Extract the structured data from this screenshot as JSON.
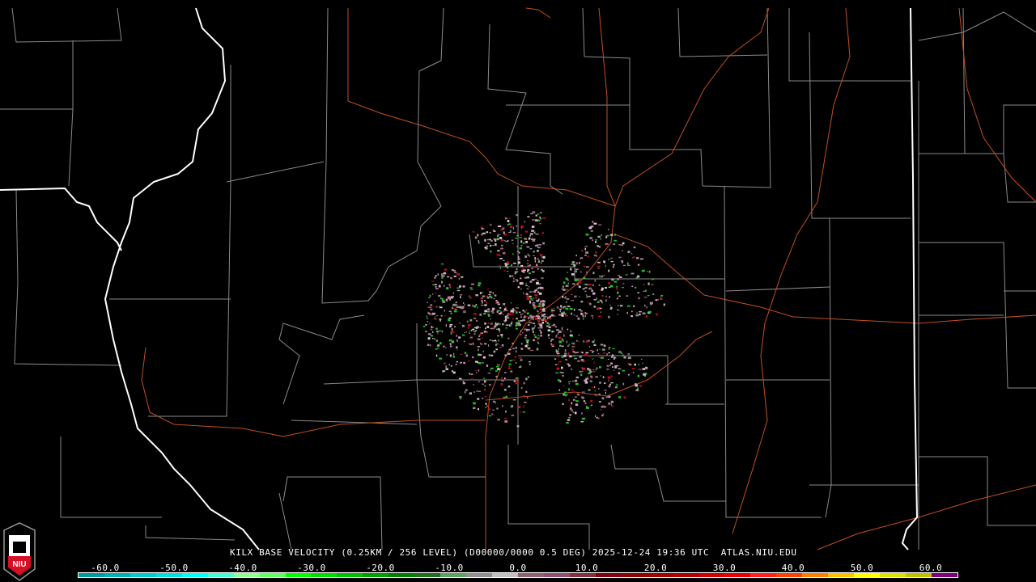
{
  "product": {
    "caption": "KILX BASE VELOCITY (0.25KM / 256 LEVEL) (D00000/0000 0.5 DEG) 2025-12-24 19:36 UTC  ATLAS.NIU.EDU",
    "radar": "KILX",
    "site": "ATLAS.NIU.EDU"
  },
  "logo": {
    "text": "NIU",
    "colors": {
      "shield": "#d50f25",
      "tower": "#ffffff"
    }
  },
  "colorbar": {
    "ticks": [
      "-60.0",
      "-50.0",
      "-40.0",
      "-30.0",
      "-20.0",
      "-10.0",
      "0.0",
      "10.0",
      "20.0",
      "30.0",
      "40.0",
      "50.0",
      "60.0"
    ],
    "range": [
      -64,
      64
    ],
    "colors": [
      "#009a9a",
      "#00b0b0",
      "#00cccc",
      "#00e0e0",
      "#00ffff",
      "#40ffd0",
      "#90ff90",
      "#60ff60",
      "#00ff00",
      "#00e000",
      "#00c000",
      "#00a000",
      "#008000",
      "#207020",
      "#60a060",
      "#909090",
      "#c0c0c0",
      "#906070",
      "#905070",
      "#803040",
      "#800010",
      "#900000",
      "#a00000",
      "#b00000",
      "#d00000",
      "#e80000",
      "#ff2020",
      "#ff4000",
      "#ff8000",
      "#ffc000",
      "#ffff00",
      "#e0e000",
      "#c0c000",
      "#800080"
    ]
  },
  "map_colors": {
    "state": "#ffffff",
    "county": "#8a8a8a",
    "road": "#c05020",
    "background": "#000000"
  }
}
